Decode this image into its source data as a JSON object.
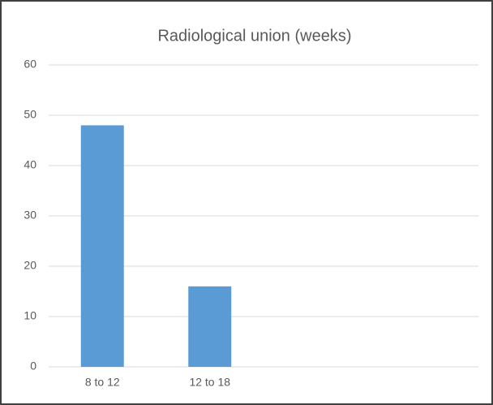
{
  "chart_data": {
    "type": "bar",
    "title": "Radiological union (weeks)",
    "categories": [
      "8 to 12",
      "12 to 18",
      null,
      null
    ],
    "values": [
      48,
      16,
      null,
      null
    ],
    "color": "#5b9bd5",
    "ylim": [
      0,
      60
    ],
    "yticks": [
      0,
      10,
      20,
      30,
      40,
      50,
      60
    ],
    "grid": true
  }
}
